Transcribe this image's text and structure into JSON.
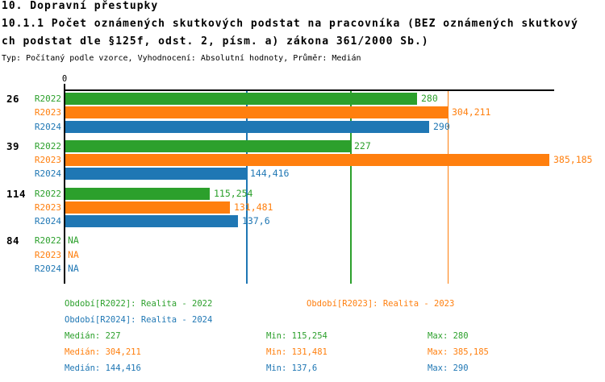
{
  "header": {
    "line1": "10. Dopravní přestupky",
    "line2": "10.1.1 Počet oznámených skutkových podstat na pracovníka (BEZ oznámených skutkový",
    "line3": "ch podstat dle §125f, odst. 2, písm. a) zákona 361/2000 Sb.)",
    "meta": "Typ: Počítaný podle vzorce, Vyhodnocení: Absolutní hodnoty, Průměr: Medián"
  },
  "colors": {
    "r2022_green": "#2ca02c",
    "r2023_orange": "#ff7f0e",
    "r2024_blue": "#1f77b4",
    "axis_black": "#000000",
    "background": "#ffffff"
  },
  "chart_data": {
    "type": "bar",
    "orientation": "horizontal",
    "title": "10.1.1 Počet oznámených skutkových podstat na pracovníka (BEZ oznámených skutkových podstat dle §125f, odst. 2, písm. a) zákona 361/2000 Sb.)",
    "subtitle": "Typ: Počítaný podle vzorce, Vyhodnocení: Absolutní hodnoty, Průměr: Medián",
    "categories": [
      "26",
      "39",
      "114",
      "84"
    ],
    "series": [
      {
        "name": "R2022",
        "color": "#2ca02c",
        "values": [
          280,
          227,
          115.254,
          null
        ],
        "labels": [
          "280",
          "227",
          "115,254",
          "NA"
        ]
      },
      {
        "name": "R2023",
        "color": "#ff7f0e",
        "values": [
          304.211,
          385.185,
          131.481,
          null
        ],
        "labels": [
          "304,211",
          "385,185",
          "131,481",
          "NA"
        ]
      },
      {
        "name": "R2024",
        "color": "#1f77b4",
        "values": [
          290,
          144.416,
          137.6,
          null
        ],
        "labels": [
          "290",
          "144,416",
          "137,6",
          "NA"
        ]
      }
    ],
    "median_lines": [
      {
        "series": "R2022",
        "value": 227,
        "color": "#2ca02c"
      },
      {
        "series": "R2023",
        "value": 304.211,
        "color": "#ff7f0e"
      },
      {
        "series": "R2024",
        "value": 144.416,
        "color": "#1f77b4"
      }
    ],
    "x_axis": {
      "origin_label": "0",
      "min": 0,
      "max": 388,
      "ticks_shown": [
        "0"
      ]
    },
    "grid": false,
    "legend_position": "bottom"
  },
  "legend": {
    "items": [
      {
        "label": "Období[R2022]: Realita - 2022",
        "color": "#2ca02c"
      },
      {
        "label": "Období[R2023]: Realita - 2023",
        "color": "#ff7f0e"
      },
      {
        "label": "Období[R2024]: Realita - 2024",
        "color": "#1f77b4"
      }
    ],
    "stats": [
      {
        "median": "Medián: 227",
        "min": "Min: 115,254",
        "max": "Max: 280",
        "color": "#2ca02c"
      },
      {
        "median": "Medián: 304,211",
        "min": "Min: 131,481",
        "max": "Max: 385,185",
        "color": "#ff7f0e"
      },
      {
        "median": "Medián: 144,416",
        "min": "Min: 137,6",
        "max": "Max: 290",
        "color": "#1f77b4"
      }
    ]
  }
}
